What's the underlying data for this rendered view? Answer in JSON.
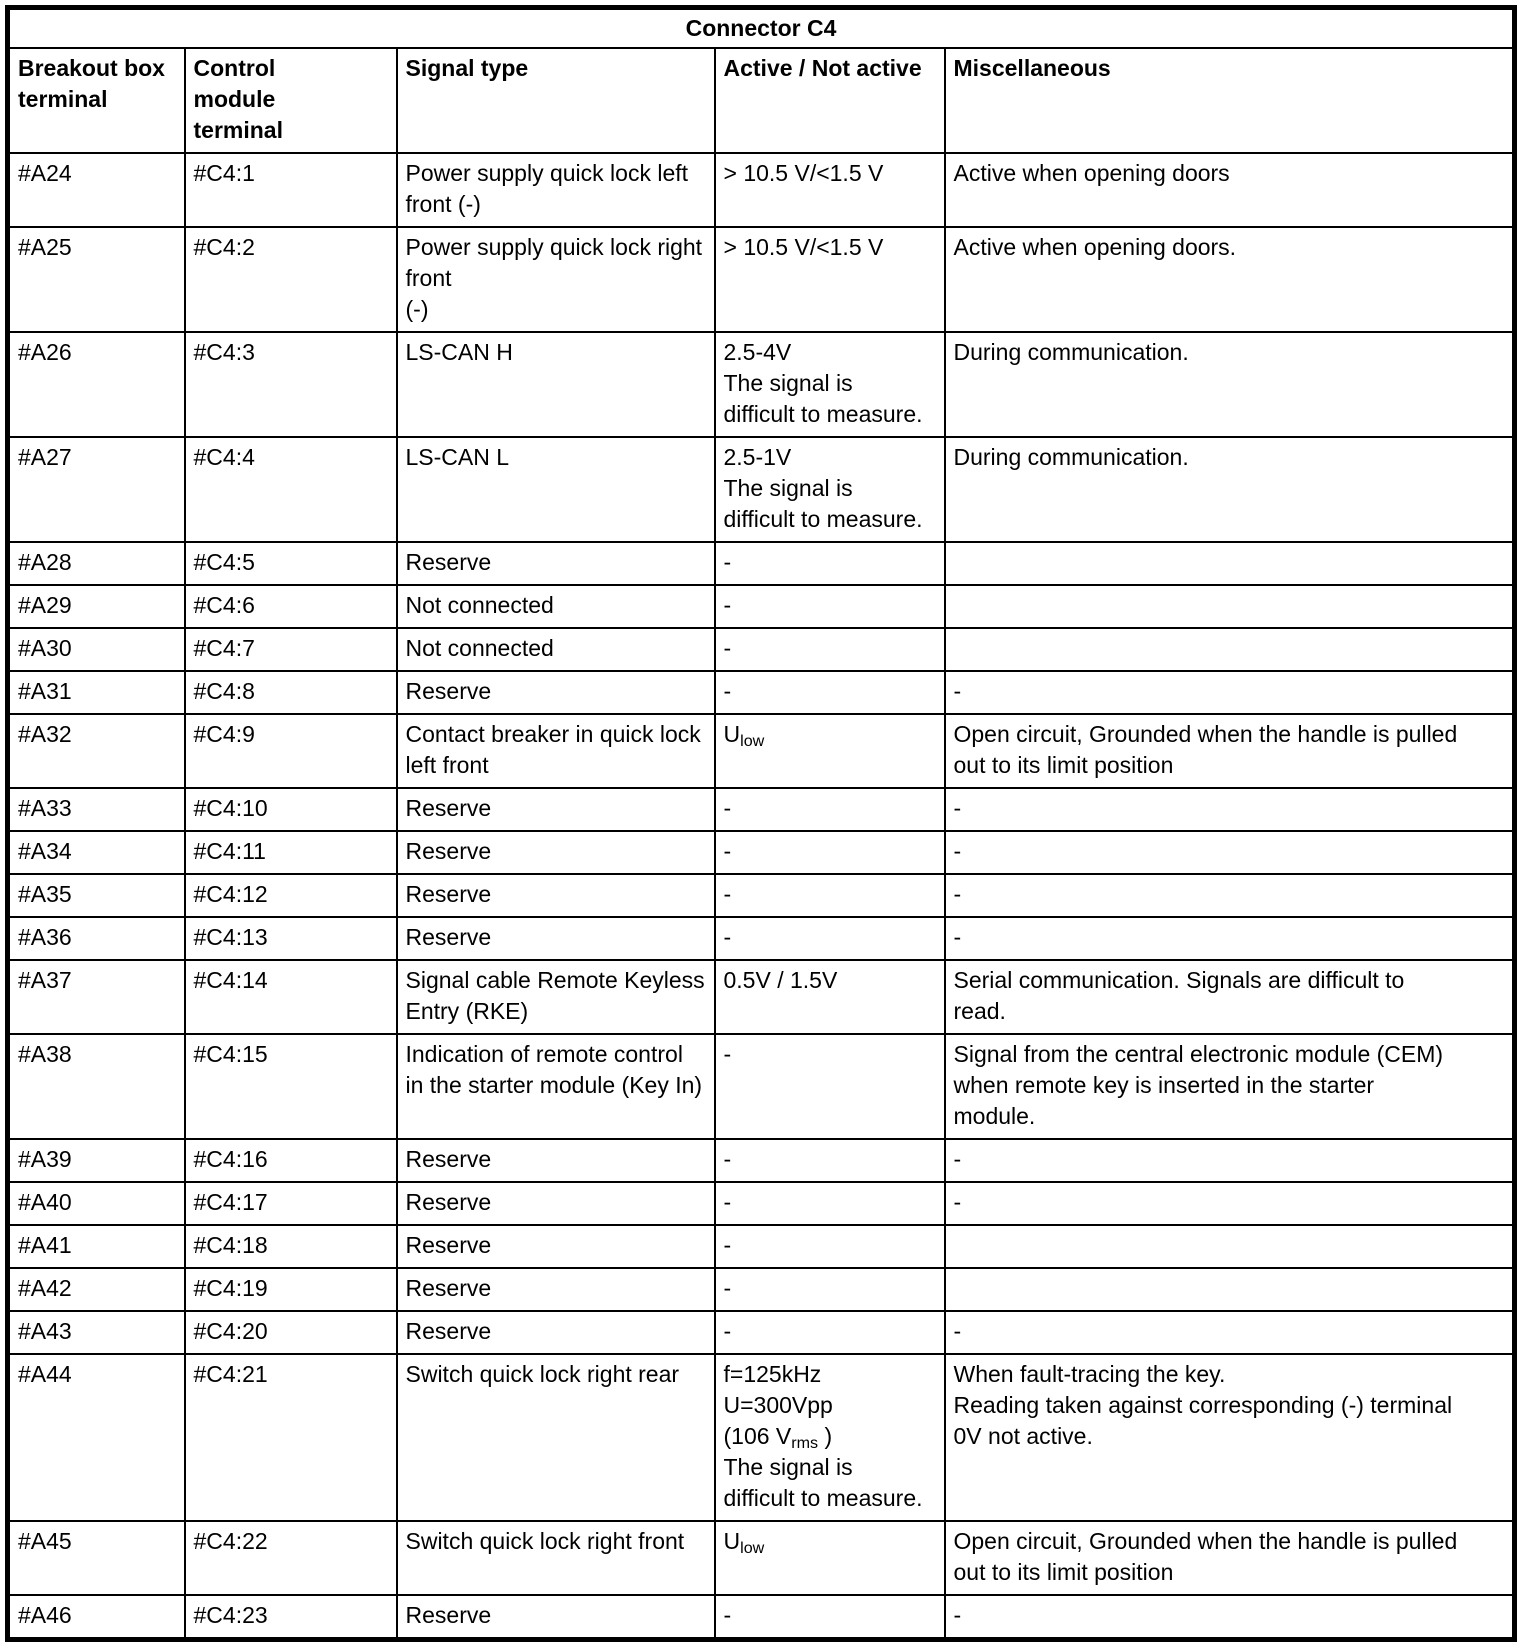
{
  "table": {
    "title": "Connector C4",
    "headers": [
      "Breakout box\nterminal",
      "Control\nmodule\nterminal",
      "Signal type",
      "Active / Not active",
      "Miscellaneous"
    ],
    "rows": [
      {
        "breakout": "#A24",
        "module": "#C4:1",
        "signal": "Power supply quick lock left\nfront (-)",
        "active": "> 10.5 V/<1.5 V",
        "misc": "Active when opening doors"
      },
      {
        "breakout": "#A25",
        "module": "#C4:2",
        "signal": "Power supply quick lock right\nfront\n(-)",
        "active": "> 10.5 V/<1.5 V",
        "misc": "Active when opening doors."
      },
      {
        "breakout": "#A26",
        "module": "#C4:3",
        "signal": "LS-CAN H",
        "active": "2.5-4V\nThe signal is\ndifficult to measure.",
        "misc": "During communication."
      },
      {
        "breakout": "#A27",
        "module": "#C4:4",
        "signal": "LS-CAN L",
        "active": "2.5-1V\nThe signal is\ndifficult to measure.",
        "misc": "During communication."
      },
      {
        "breakout": "#A28",
        "module": "#C4:5",
        "signal": "Reserve",
        "active": "-",
        "misc": ""
      },
      {
        "breakout": "#A29",
        "module": "#C4:6",
        "signal": "Not connected",
        "active": "-",
        "misc": ""
      },
      {
        "breakout": "#A30",
        "module": "#C4:7",
        "signal": "Not connected",
        "active": "-",
        "misc": ""
      },
      {
        "breakout": "#A31",
        "module": "#C4:8",
        "signal": "Reserve",
        "active": "-",
        "misc": "-"
      },
      {
        "breakout": "#A32",
        "module": "#C4:9",
        "signal": "Contact breaker in quick lock\nleft front",
        "active": [
          {
            "t": "U"
          },
          {
            "sub": "low"
          }
        ],
        "misc": "Open circuit, Grounded when the handle is pulled\nout to its limit position"
      },
      {
        "breakout": "#A33",
        "module": "#C4:10",
        "signal": "Reserve",
        "active": "-",
        "misc": "-"
      },
      {
        "breakout": "#A34",
        "module": "#C4:11",
        "signal": "Reserve",
        "active": "-",
        "misc": "-"
      },
      {
        "breakout": "#A35",
        "module": "#C4:12",
        "signal": "Reserve",
        "active": "-",
        "misc": "-"
      },
      {
        "breakout": "#A36",
        "module": "#C4:13",
        "signal": "Reserve",
        "active": "-",
        "misc": "-"
      },
      {
        "breakout": "#A37",
        "module": "#C4:14",
        "signal": "Signal cable Remote Keyless\nEntry (RKE)",
        "active": "0.5V / 1.5V",
        "misc": "Serial communication. Signals are difficult to\nread."
      },
      {
        "breakout": "#A38",
        "module": "#C4:15",
        "signal": "Indication of remote control\nin the starter module (Key In)",
        "active": "-",
        "misc": "Signal from the central electronic module (CEM)\nwhen remote key is inserted in the starter\nmodule."
      },
      {
        "breakout": "#A39",
        "module": "#C4:16",
        "signal": "Reserve",
        "active": "-",
        "misc": "-"
      },
      {
        "breakout": "#A40",
        "module": "#C4:17",
        "signal": "Reserve",
        "active": "-",
        "misc": "-"
      },
      {
        "breakout": "#A41",
        "module": "#C4:18",
        "signal": "Reserve",
        "active": "-",
        "misc": ""
      },
      {
        "breakout": "#A42",
        "module": "#C4:19",
        "signal": "Reserve",
        "active": "-",
        "misc": ""
      },
      {
        "breakout": "#A43",
        "module": "#C4:20",
        "signal": "Reserve",
        "active": "-",
        "misc": "-"
      },
      {
        "breakout": "#A44",
        "module": "#C4:21",
        "signal": "Switch quick lock right rear",
        "active": [
          {
            "t": "f=125kHz\nU=300Vpp\n(106 V"
          },
          {
            "sub": "rms"
          },
          {
            "t": " )\nThe signal is\ndifficult to measure."
          }
        ],
        "misc": "When fault-tracing the key.\nReading taken against corresponding (-) terminal\n0V not active."
      },
      {
        "breakout": "#A45",
        "module": "#C4:22",
        "signal": "Switch quick lock right front",
        "active": [
          {
            "t": "U"
          },
          {
            "sub": "low"
          }
        ],
        "misc": "Open circuit, Grounded when the handle is pulled\nout to its limit position"
      },
      {
        "breakout": "#A46",
        "module": "#C4:23",
        "signal": "Reserve",
        "active": "-",
        "misc": "-"
      }
    ]
  }
}
